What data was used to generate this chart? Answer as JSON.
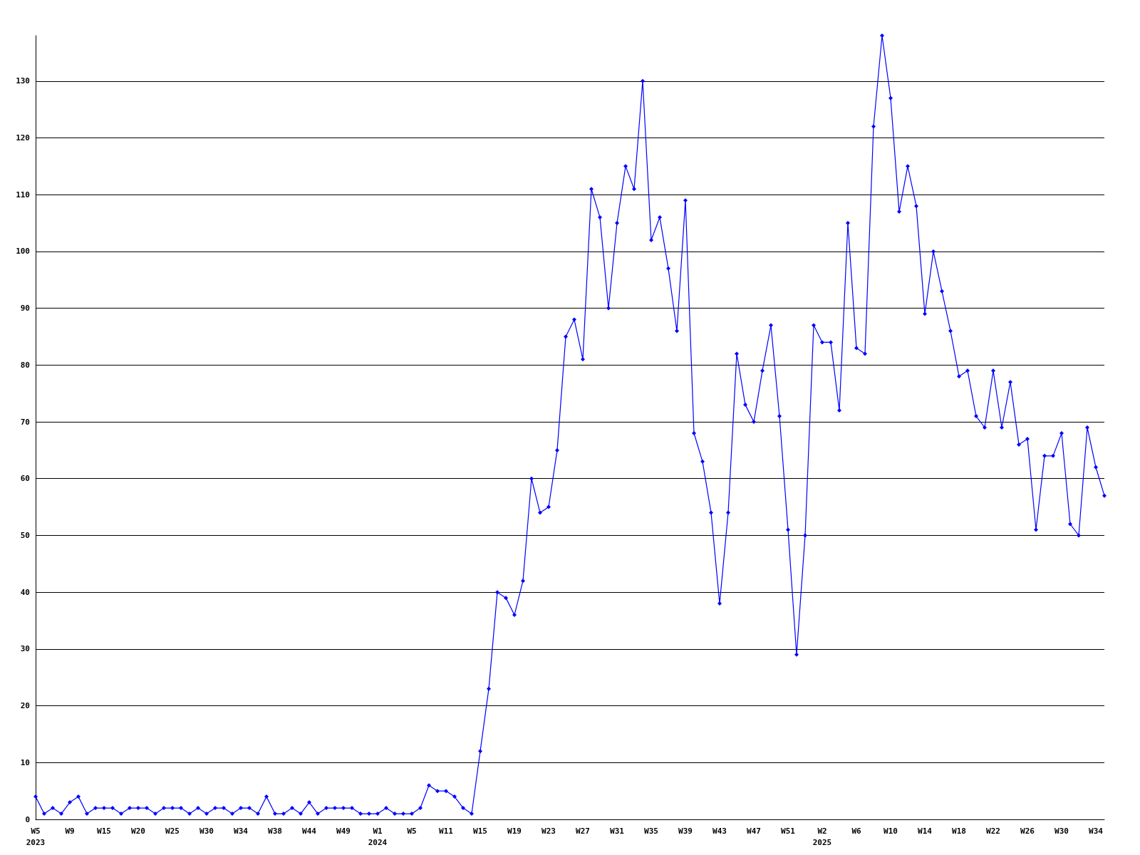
{
  "chart_data": {
    "type": "line",
    "categories": [
      "W5\n2023",
      null,
      null,
      null,
      "W9",
      null,
      null,
      null,
      "W15",
      null,
      null,
      null,
      "W20",
      null,
      null,
      null,
      "W25",
      null,
      null,
      null,
      "W30",
      null,
      null,
      null,
      "W34",
      null,
      null,
      null,
      "W38",
      null,
      null,
      null,
      "W44",
      null,
      null,
      null,
      "W49",
      null,
      null,
      null,
      "W1\n2024",
      null,
      null,
      null,
      "W5",
      null,
      null,
      null,
      "W11",
      null,
      null,
      null,
      "W15",
      null,
      null,
      null,
      "W19",
      null,
      null,
      null,
      "W23",
      null,
      null,
      null,
      "W27",
      null,
      null,
      null,
      "W31",
      null,
      null,
      null,
      "W35",
      null,
      null,
      null,
      "W39",
      null,
      null,
      null,
      "W43",
      null,
      null,
      null,
      "W47",
      null,
      null,
      null,
      "W51",
      null,
      null,
      null,
      "W2\n2025",
      null,
      null,
      null,
      "W6",
      null,
      null,
      null,
      "W10",
      null,
      null,
      null,
      "W14",
      null,
      null,
      null,
      "W18",
      null,
      null,
      null,
      "W22",
      null,
      null,
      null,
      "W26",
      null,
      null,
      null,
      "W30",
      null,
      null,
      null,
      "W34",
      null
    ],
    "series": [
      {
        "color": "#0000ff",
        "values": [
          4,
          1,
          2,
          1,
          3,
          4,
          1,
          2,
          2,
          2,
          1,
          2,
          2,
          2,
          1,
          2,
          2,
          2,
          1,
          2,
          1,
          2,
          2,
          1,
          2,
          2,
          1,
          4,
          1,
          1,
          2,
          1,
          3,
          1,
          2,
          2,
          2,
          2,
          1,
          1,
          1,
          2,
          1,
          1,
          1,
          2,
          6,
          5,
          5,
          4,
          2,
          1,
          12,
          23,
          40,
          39,
          36,
          42,
          60,
          54,
          55,
          65,
          85,
          88,
          81,
          111,
          106,
          90,
          105,
          115,
          111,
          130,
          102,
          106,
          97,
          86,
          109,
          68,
          63,
          54,
          38,
          54,
          82,
          73,
          70,
          79,
          87,
          71,
          51,
          29,
          50,
          87,
          84,
          84,
          72,
          105,
          83,
          82,
          122,
          138,
          127,
          107,
          115,
          108,
          89,
          100,
          93,
          86,
          78,
          79,
          71,
          69,
          79,
          69,
          77,
          66,
          67,
          51,
          64,
          64,
          68,
          52,
          50,
          69,
          62,
          57
        ]
      }
    ],
    "ylim": [
      0,
      138
    ],
    "yticks": [
      0,
      10,
      20,
      30,
      40,
      50,
      60,
      70,
      80,
      90,
      100,
      110,
      120,
      130
    ],
    "grid": "y",
    "marker": "diamond",
    "line_style": "solid"
  }
}
